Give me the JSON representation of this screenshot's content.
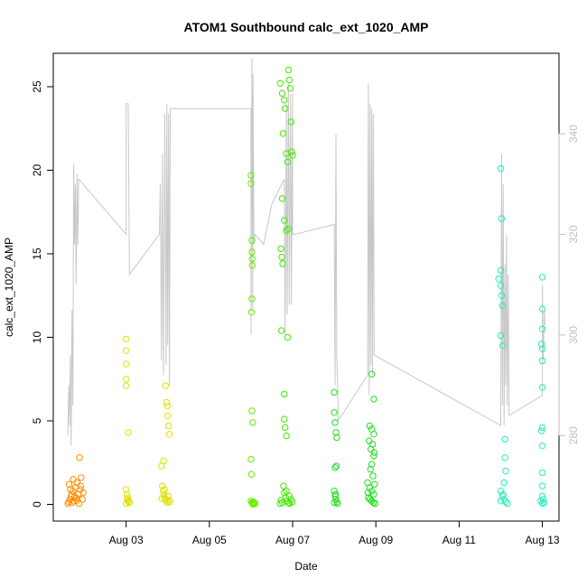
{
  "chart_data": {
    "type": "scatter",
    "title": "ATOM1 Southbound calc_ext_1020_AMP",
    "xlabel": "Date",
    "ylabel": "calc_ext_1020_AMP",
    "x_ticks": [
      "Aug 03",
      "Aug 05",
      "Aug 07",
      "Aug 09",
      "Aug 11",
      "Aug 13"
    ],
    "x_tick_days": [
      3,
      5,
      7,
      9,
      11,
      13
    ],
    "xlim_days": [
      1.25,
      13.4
    ],
    "ylim": [
      -1,
      27
    ],
    "y_ticks": [
      0,
      5,
      10,
      15,
      20,
      25
    ],
    "y2_ticks": [
      280,
      300,
      320,
      340
    ],
    "y2lim": [
      263,
      356
    ],
    "scatter_groups": [
      {
        "color": "#ff8c00",
        "points": [
          [
            1.6,
            0.05
          ],
          [
            1.62,
            0.15
          ],
          [
            1.65,
            0.3
          ],
          [
            1.68,
            0.5
          ],
          [
            1.7,
            0.1
          ],
          [
            1.72,
            0.8
          ],
          [
            1.75,
            0.2
          ],
          [
            1.78,
            1.0
          ],
          [
            1.8,
            0.4
          ],
          [
            1.82,
            1.3
          ],
          [
            1.85,
            0.6
          ],
          [
            1.88,
            2.8
          ],
          [
            1.9,
            0.9
          ],
          [
            1.92,
            1.6
          ],
          [
            1.95,
            0.3
          ],
          [
            1.97,
            0.7
          ],
          [
            1.63,
            1.2
          ],
          [
            1.7,
            0.6
          ],
          [
            1.76,
            0.45
          ],
          [
            1.83,
            0.25
          ],
          [
            1.87,
            0.05
          ],
          [
            1.91,
            1.1
          ],
          [
            1.66,
            0.9
          ],
          [
            1.73,
            1.5
          ]
        ]
      },
      {
        "color": "#e0e000",
        "points": [
          [
            3.0,
            9.9
          ],
          [
            3.0,
            9.2
          ],
          [
            3.0,
            8.4
          ],
          [
            3.0,
            7.5
          ],
          [
            3.0,
            7.1
          ],
          [
            3.05,
            4.3
          ],
          [
            3.0,
            0.9
          ],
          [
            3.02,
            0.6
          ],
          [
            3.04,
            0.4
          ],
          [
            3.06,
            0.2
          ],
          [
            3.08,
            0.1
          ],
          [
            3.0,
            0.05
          ],
          [
            3.03,
            0.3
          ],
          [
            3.05,
            0.15
          ],
          [
            3.85,
            2.3
          ],
          [
            3.9,
            2.6
          ],
          [
            3.95,
            7.1
          ],
          [
            3.97,
            6.1
          ],
          [
            3.99,
            5.9
          ],
          [
            4.0,
            5.3
          ],
          [
            4.02,
            4.7
          ],
          [
            4.04,
            4.2
          ],
          [
            3.87,
            1.1
          ],
          [
            3.89,
            0.8
          ],
          [
            3.91,
            0.6
          ],
          [
            3.93,
            0.4
          ],
          [
            3.95,
            0.3
          ],
          [
            3.97,
            0.2
          ],
          [
            3.99,
            0.1
          ],
          [
            4.01,
            0.5
          ],
          [
            4.03,
            0.25
          ],
          [
            4.05,
            0.15
          ],
          [
            3.86,
            0.35
          ],
          [
            3.92,
            0.9
          ]
        ]
      },
      {
        "color": "#66ee00",
        "points": [
          [
            6.0,
            19.7
          ],
          [
            6.0,
            19.2
          ],
          [
            6.02,
            15.8
          ],
          [
            6.02,
            15.1
          ],
          [
            6.03,
            14.7
          ],
          [
            6.03,
            14.3
          ],
          [
            6.02,
            12.3
          ],
          [
            6.01,
            11.5
          ],
          [
            6.02,
            5.6
          ],
          [
            6.04,
            4.9
          ],
          [
            6.0,
            2.7
          ],
          [
            6.01,
            1.8
          ],
          [
            6.0,
            0.2
          ],
          [
            6.02,
            0.1
          ],
          [
            6.04,
            0.05
          ],
          [
            6.06,
            0.15
          ],
          [
            6.08,
            0.1
          ],
          [
            6.1,
            0.05
          ],
          [
            6.05,
            0.0
          ]
        ]
      },
      {
        "color": "#44e800",
        "points": [
          [
            6.7,
            25.2
          ],
          [
            6.75,
            24.6
          ],
          [
            6.8,
            24.2
          ],
          [
            6.82,
            23.7
          ],
          [
            6.85,
            21.0
          ],
          [
            6.88,
            20.5
          ],
          [
            6.9,
            26.0
          ],
          [
            6.92,
            25.4
          ],
          [
            6.94,
            24.9
          ],
          [
            6.96,
            22.9
          ],
          [
            6.98,
            21.1
          ],
          [
            7.0,
            20.9
          ],
          [
            6.75,
            18.3
          ],
          [
            6.8,
            17.0
          ],
          [
            6.85,
            16.4
          ],
          [
            6.9,
            16.5
          ],
          [
            6.72,
            15.3
          ],
          [
            6.74,
            14.8
          ],
          [
            6.76,
            14.4
          ],
          [
            6.73,
            10.4
          ],
          [
            6.88,
            10.0
          ],
          [
            6.8,
            6.6
          ],
          [
            6.8,
            5.1
          ],
          [
            6.82,
            4.6
          ],
          [
            6.85,
            4.1
          ],
          [
            6.78,
            1.1
          ],
          [
            6.8,
            0.7
          ],
          [
            6.83,
            0.4
          ],
          [
            6.86,
            0.2
          ],
          [
            6.9,
            0.1
          ],
          [
            6.93,
            0.05
          ],
          [
            6.96,
            0.3
          ],
          [
            6.99,
            0.15
          ],
          [
            6.7,
            0.05
          ],
          [
            6.72,
            0.25
          ],
          [
            6.75,
            0.1
          ],
          [
            6.85,
            0.8
          ],
          [
            6.92,
            0.5
          ],
          [
            6.77,
            22.2
          ]
        ]
      },
      {
        "color": "#22dd22",
        "points": [
          [
            8.0,
            6.7
          ],
          [
            8.0,
            5.5
          ],
          [
            8.02,
            4.9
          ],
          [
            8.04,
            4.3
          ],
          [
            8.06,
            4.0
          ],
          [
            8.02,
            2.2
          ],
          [
            8.05,
            2.3
          ],
          [
            8.0,
            0.8
          ],
          [
            8.02,
            0.5
          ],
          [
            8.04,
            0.3
          ],
          [
            8.06,
            0.15
          ],
          [
            8.08,
            0.05
          ],
          [
            8.0,
            0.1
          ],
          [
            8.03,
            0.6
          ],
          [
            8.9,
            7.8
          ],
          [
            8.95,
            6.3
          ],
          [
            8.85,
            4.7
          ],
          [
            8.9,
            4.5
          ],
          [
            8.95,
            4.2
          ],
          [
            8.92,
            3.6
          ],
          [
            8.88,
            3.3
          ],
          [
            8.95,
            2.9
          ],
          [
            8.9,
            2.4
          ],
          [
            8.87,
            2.1
          ],
          [
            8.93,
            1.7
          ],
          [
            8.8,
            1.3
          ],
          [
            8.85,
            1.0
          ],
          [
            8.9,
            0.8
          ],
          [
            8.95,
            0.6
          ],
          [
            8.82,
            0.4
          ],
          [
            8.86,
            0.3
          ],
          [
            8.9,
            0.2
          ],
          [
            8.94,
            0.1
          ],
          [
            8.98,
            0.05
          ],
          [
            8.84,
            3.8
          ],
          [
            8.96,
            3.1
          ],
          [
            8.81,
            0.7
          ],
          [
            8.97,
            1.2
          ]
        ]
      },
      {
        "color": "#22eebb",
        "points": [
          [
            12.0,
            20.1
          ],
          [
            12.02,
            17.1
          ],
          [
            12.0,
            14.0
          ],
          [
            11.95,
            13.5
          ],
          [
            12.0,
            13.1
          ],
          [
            12.02,
            12.5
          ],
          [
            12.04,
            11.9
          ],
          [
            12.0,
            10.1
          ],
          [
            12.05,
            9.5
          ],
          [
            12.1,
            3.9
          ],
          [
            12.1,
            2.8
          ],
          [
            12.12,
            2.0
          ],
          [
            12.08,
            1.3
          ],
          [
            12.0,
            0.8
          ],
          [
            12.04,
            0.5
          ],
          [
            12.08,
            0.3
          ],
          [
            12.12,
            0.15
          ],
          [
            12.16,
            0.05
          ],
          [
            12.0,
            0.2
          ],
          [
            12.06,
            0.6
          ],
          [
            13.0,
            13.6
          ],
          [
            13.0,
            11.7
          ],
          [
            13.0,
            10.5
          ],
          [
            12.98,
            9.6
          ],
          [
            13.0,
            9.3
          ],
          [
            13.0,
            8.6
          ],
          [
            13.0,
            7.0
          ],
          [
            13.0,
            4.6
          ],
          [
            12.98,
            4.4
          ],
          [
            13.0,
            3.5
          ],
          [
            13.0,
            1.9
          ],
          [
            13.0,
            1.1
          ],
          [
            13.0,
            0.5
          ],
          [
            13.02,
            0.3
          ],
          [
            13.04,
            0.1
          ],
          [
            12.96,
            0.2
          ],
          [
            13.0,
            0.05
          ]
        ]
      }
    ],
    "line_series": {
      "color": "#c8c8c8",
      "points": [
        [
          1.6,
          280
        ],
        [
          1.62,
          290
        ],
        [
          1.64,
          282
        ],
        [
          1.66,
          296
        ],
        [
          1.68,
          278
        ],
        [
          1.7,
          305
        ],
        [
          1.72,
          286
        ],
        [
          1.74,
          334
        ],
        [
          1.76,
          318
        ],
        [
          1.78,
          330
        ],
        [
          1.8,
          310
        ],
        [
          1.82,
          332
        ],
        [
          1.84,
          318
        ],
        [
          1.86,
          331
        ],
        [
          3.0,
          320
        ],
        [
          3.0,
          346
        ],
        [
          3.05,
          346
        ],
        [
          3.08,
          312
        ],
        [
          3.8,
          320
        ],
        [
          3.82,
          330
        ],
        [
          3.85,
          295
        ],
        [
          3.87,
          336
        ],
        [
          3.9,
          292
        ],
        [
          3.93,
          344
        ],
        [
          3.96,
          294
        ],
        [
          3.98,
          346
        ],
        [
          4.0,
          298
        ],
        [
          4.02,
          344
        ],
        [
          4.04,
          290
        ],
        [
          4.06,
          345
        ],
        [
          6.0,
          345
        ],
        [
          6.0,
          300
        ],
        [
          6.02,
          355
        ],
        [
          6.04,
          305
        ],
        [
          6.05,
          352
        ],
        [
          6.07,
          318
        ],
        [
          6.1,
          320
        ],
        [
          6.3,
          318
        ],
        [
          6.5,
          326
        ],
        [
          6.8,
          331
        ],
        [
          6.82,
          300
        ],
        [
          6.85,
          346
        ],
        [
          6.87,
          304
        ],
        [
          6.9,
          350
        ],
        [
          6.92,
          306
        ],
        [
          6.95,
          348
        ],
        [
          6.97,
          306
        ],
        [
          7.0,
          348
        ],
        [
          7.0,
          320
        ],
        [
          7.05,
          320
        ],
        [
          8.0,
          322
        ],
        [
          8.02,
          290
        ],
        [
          8.04,
          340
        ],
        [
          8.06,
          296
        ],
        [
          8.08,
          290
        ],
        [
          8.1,
          283
        ],
        [
          8.8,
          292
        ],
        [
          8.82,
          350
        ],
        [
          8.84,
          288
        ],
        [
          8.86,
          346
        ],
        [
          8.88,
          294
        ],
        [
          8.9,
          345
        ],
        [
          8.92,
          292
        ],
        [
          8.94,
          344
        ],
        [
          8.96,
          296
        ],
        [
          12.0,
          282
        ],
        [
          12.02,
          336
        ],
        [
          12.04,
          286
        ],
        [
          12.06,
          330
        ],
        [
          12.08,
          282
        ],
        [
          12.1,
          314
        ],
        [
          12.12,
          290
        ],
        [
          12.14,
          320
        ],
        [
          12.16,
          286
        ],
        [
          12.18,
          312
        ],
        [
          12.2,
          284
        ],
        [
          13.0,
          288
        ],
        [
          13.0,
          310
        ],
        [
          13.02,
          295
        ],
        [
          13.05,
          305
        ],
        [
          13.06,
          302
        ]
      ]
    }
  }
}
